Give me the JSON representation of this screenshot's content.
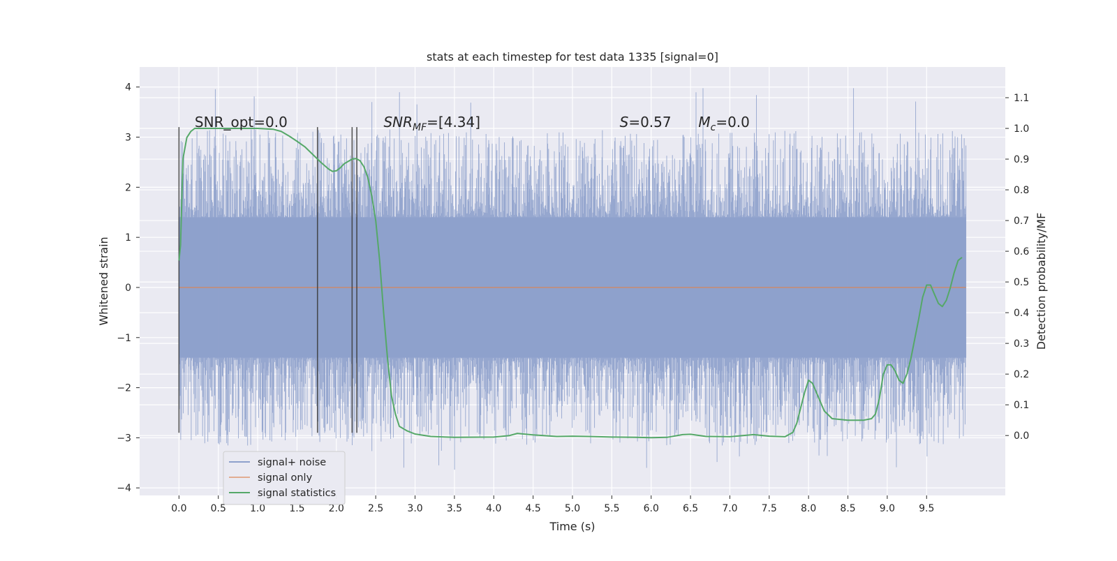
{
  "chart_data": {
    "type": "line",
    "title": "stats at each timestep for test data 1335 [signal=0]",
    "xlabel": "Time (s)",
    "ylabel": "Whitened strain",
    "y2label": "Detection probability/MF",
    "xlim": [
      -0.5,
      10.5
    ],
    "ylim": [
      -4.15,
      4.4
    ],
    "y2lim": [
      -0.195,
      1.2
    ],
    "x_ticks": [
      "0.0",
      "0.5",
      "1.0",
      "1.5",
      "2.0",
      "2.5",
      "3.0",
      "3.5",
      "4.0",
      "4.5",
      "5.0",
      "5.5",
      "6.0",
      "6.5",
      "7.0",
      "7.5",
      "8.0",
      "8.5",
      "9.0",
      "9.5"
    ],
    "y_ticks": [
      "4",
      "3",
      "2",
      "1",
      "0",
      "−1",
      "−2",
      "−3",
      "−4"
    ],
    "y2_ticks": [
      "1.1",
      "1.0",
      "0.9",
      "0.8",
      "0.7",
      "0.6",
      "0.5",
      "0.4",
      "0.3",
      "0.2",
      "0.1",
      "0.0"
    ],
    "grid": true,
    "legend_placement": "lower-left",
    "series": [
      {
        "name": "signal+ noise",
        "color": "#8da0cb",
        "kind": "noise",
        "x_range": [
          0.0,
          10.0
        ],
        "core_amplitude": 1.4,
        "typical_peak": 2.7,
        "max_peak": 4.05
      },
      {
        "name": "signal only",
        "color": "#dd8452",
        "x": [
          0.0,
          10.0
        ],
        "values": [
          0.0,
          0.0
        ]
      },
      {
        "name": "signal statistics",
        "color": "#55a868",
        "axis": "right",
        "x": [
          0.0,
          0.02,
          0.05,
          0.1,
          0.15,
          0.2,
          0.3,
          0.5,
          0.8,
          1.0,
          1.2,
          1.3,
          1.4,
          1.5,
          1.6,
          1.7,
          1.8,
          1.9,
          1.95,
          2.0,
          2.05,
          2.1,
          2.2,
          2.25,
          2.3,
          2.35,
          2.4,
          2.45,
          2.5,
          2.55,
          2.6,
          2.65,
          2.7,
          2.75,
          2.8,
          2.9,
          3.0,
          3.2,
          3.5,
          4.0,
          4.2,
          4.3,
          4.5,
          4.8,
          5.0,
          5.2,
          5.5,
          5.8,
          6.0,
          6.2,
          6.4,
          6.5,
          6.7,
          7.0,
          7.3,
          7.5,
          7.7,
          7.8,
          7.85,
          7.95,
          8.0,
          8.05,
          8.1,
          8.2,
          8.3,
          8.5,
          8.7,
          8.8,
          8.85,
          8.9,
          8.95,
          9.0,
          9.05,
          9.1,
          9.15,
          9.2,
          9.25,
          9.3,
          9.4,
          9.45,
          9.5,
          9.55,
          9.6,
          9.65,
          9.7,
          9.75,
          9.8,
          9.85,
          9.9,
          9.95
        ],
        "values": [
          0.57,
          0.62,
          0.9,
          0.97,
          0.99,
          1.0,
          1.0,
          1.0,
          1.0,
          1.0,
          0.997,
          0.99,
          0.975,
          0.958,
          0.94,
          0.915,
          0.89,
          0.868,
          0.86,
          0.862,
          0.872,
          0.885,
          0.9,
          0.902,
          0.895,
          0.875,
          0.84,
          0.78,
          0.7,
          0.57,
          0.4,
          0.25,
          0.13,
          0.07,
          0.03,
          0.015,
          0.005,
          -0.003,
          -0.006,
          -0.005,
          0.0,
          0.007,
          0.002,
          -0.003,
          -0.002,
          -0.003,
          -0.005,
          -0.006,
          -0.007,
          -0.006,
          0.003,
          0.004,
          -0.003,
          -0.004,
          0.003,
          -0.002,
          -0.004,
          0.01,
          0.04,
          0.14,
          0.18,
          0.17,
          0.14,
          0.08,
          0.055,
          0.05,
          0.05,
          0.055,
          0.07,
          0.12,
          0.2,
          0.23,
          0.23,
          0.21,
          0.18,
          0.17,
          0.2,
          0.25,
          0.38,
          0.45,
          0.49,
          0.49,
          0.46,
          0.43,
          0.42,
          0.44,
          0.48,
          0.53,
          0.57,
          0.58
        ]
      }
    ],
    "vlines": [
      0.0,
      1.76,
      2.2,
      2.26
    ],
    "annotations": [
      {
        "id": "snr_opt",
        "x": 0.2,
        "y": 3.2,
        "text": "SNR_opt=0.0"
      },
      {
        "id": "snr_mf",
        "x": 2.6,
        "y": 3.2,
        "base": "SNR",
        "sub": "MF",
        "rest": "=[4.34]"
      },
      {
        "id": "s_val",
        "x": 5.6,
        "y": 3.2,
        "base": "S",
        "sub": "",
        "rest": "=0.57"
      },
      {
        "id": "mc_val",
        "x": 6.6,
        "y": 3.2,
        "base": "M",
        "sub": "c",
        "rest": "=0.0"
      }
    ]
  }
}
